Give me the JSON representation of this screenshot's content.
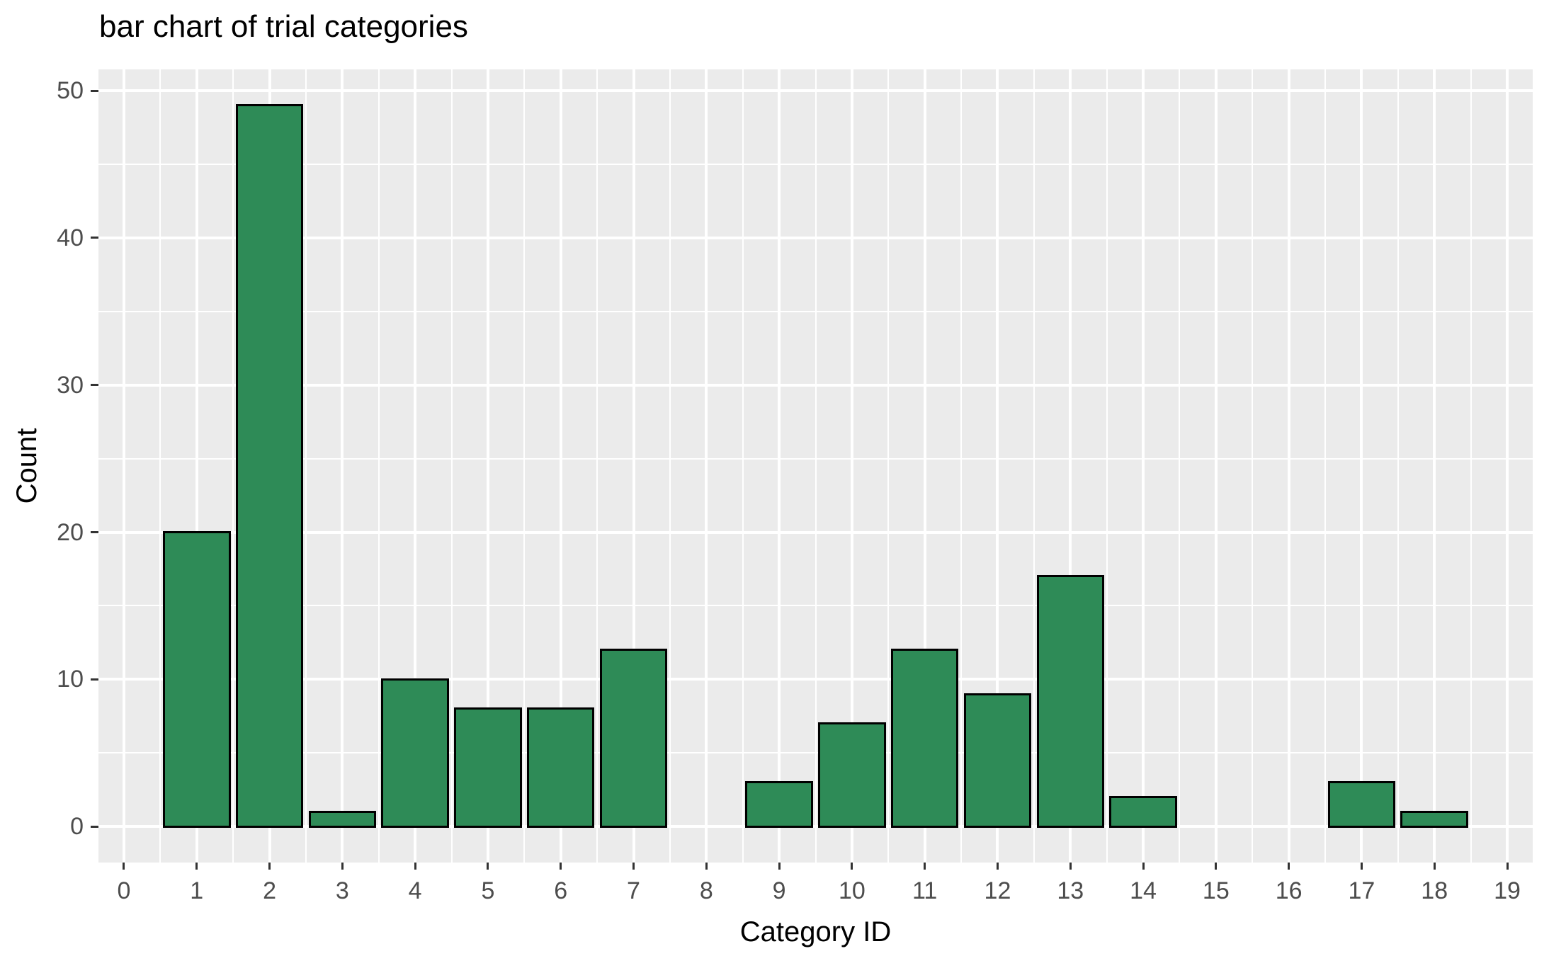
{
  "figure": {
    "title": "bar chart of trial categories"
  },
  "chart_data": {
    "type": "bar",
    "title": "bar chart of trial categories",
    "xlabel": "Category ID",
    "ylabel": "Count",
    "categories": [
      0,
      1,
      2,
      3,
      4,
      5,
      6,
      7,
      8,
      9,
      10,
      11,
      12,
      13,
      14,
      15,
      16,
      17,
      18,
      19
    ],
    "values": [
      0,
      20,
      49,
      1,
      10,
      8,
      8,
      12,
      0,
      3,
      7,
      12,
      9,
      17,
      2,
      0,
      0,
      3,
      1,
      0
    ],
    "bars": [
      {
        "x": 1,
        "count": 20
      },
      {
        "x": 2,
        "count": 49
      },
      {
        "x": 3,
        "count": 1
      },
      {
        "x": 4,
        "count": 10
      },
      {
        "x": 5,
        "count": 8
      },
      {
        "x": 6,
        "count": 8
      },
      {
        "x": 7,
        "count": 12
      },
      {
        "x": 9,
        "count": 3
      },
      {
        "x": 10,
        "count": 7
      },
      {
        "x": 11,
        "count": 12
      },
      {
        "x": 12,
        "count": 9
      },
      {
        "x": 13,
        "count": 17
      },
      {
        "x": 14,
        "count": 2
      },
      {
        "x": 17,
        "count": 3
      },
      {
        "x": 18,
        "count": 1
      }
    ],
    "x_ticks": [
      0,
      1,
      2,
      3,
      4,
      5,
      6,
      7,
      8,
      9,
      10,
      11,
      12,
      13,
      14,
      15,
      16,
      17,
      18,
      19
    ],
    "y_ticks": [
      0,
      10,
      20,
      30,
      40,
      50
    ],
    "x_range": [
      -0.35,
      19.35
    ],
    "y_range": [
      -2.45,
      51.45
    ],
    "bar_width": 0.9,
    "grid": "major+minor, white on gray panel",
    "legend": "none",
    "colors": {
      "bar_fill": "#2E8B57",
      "bar_stroke": "#000000",
      "panel_bg": "#EBEBEB",
      "gridline": "#FFFFFF",
      "tick_label": "#4D4D4D",
      "tick_mark": "#333333",
      "title_text": "#000000"
    }
  }
}
